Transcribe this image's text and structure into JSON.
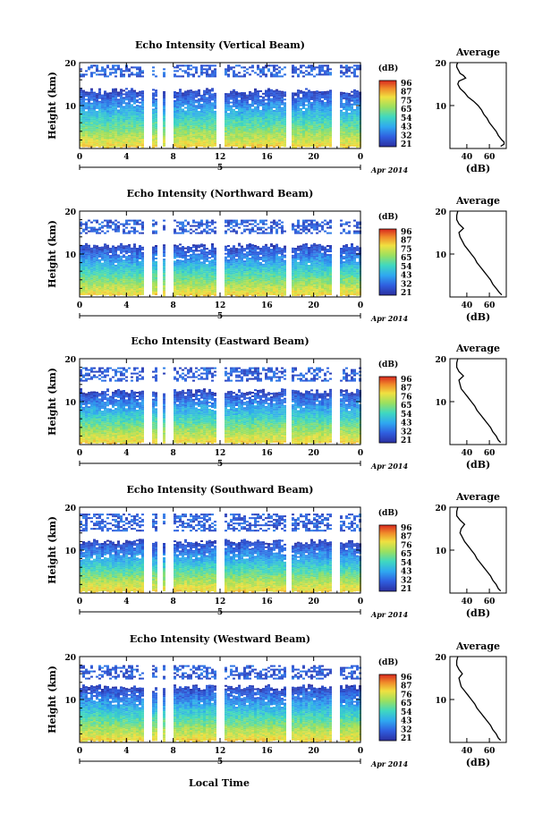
{
  "figure": {
    "common_xlabel": "Local Time",
    "date_suffix": "Apr 2014",
    "day_marker": "5",
    "colorbar_unit": "(dB)"
  },
  "chart_data": [
    {
      "type": "heatmap",
      "beam": "Vertical",
      "title": "Echo Intensity (Vertical Beam)",
      "ylabel": "Height (km)",
      "xlim": [
        0,
        24
      ],
      "ylim": [
        0,
        20
      ],
      "xticks": [
        "0",
        "4",
        "8",
        "12",
        "16",
        "20",
        "0"
      ],
      "yticks": [
        "10",
        "20"
      ],
      "colorbar": {
        "unit": "(dB)",
        "ticks": [
          "96",
          "87",
          "75",
          "65",
          "54",
          "43",
          "32",
          "21"
        ]
      },
      "gaps_hours": [
        [
          5.6,
          6.0
        ],
        [
          6.7,
          7.1
        ],
        [
          7.5,
          8.0
        ],
        [
          11.8,
          12.3
        ],
        [
          17.7,
          18.1
        ],
        [
          21.7,
          22.1
        ]
      ],
      "layers": [
        {
          "top_km": 19.5,
          "bottom_km": 16.6,
          "level_db": 30
        },
        {
          "top_km": 13.5,
          "bottom_km": 0.5,
          "level_db": 75
        }
      ],
      "profile": {
        "title": "Average",
        "xlabel": "(dB)",
        "xticks": [
          "40",
          "60"
        ],
        "yticks": [
          "10",
          "20"
        ],
        "xlim": [
          25,
          75
        ],
        "ylim": [
          0,
          20
        ],
        "height_km": [
          0.5,
          1,
          1.5,
          2,
          3,
          4,
          5,
          6,
          7,
          8,
          9,
          10,
          11,
          12,
          13,
          14,
          15,
          15.7,
          16.4,
          17,
          17.5,
          18,
          18.5,
          19,
          19.5,
          20
        ],
        "avg_db": [
          70,
          73,
          73,
          71,
          68,
          66,
          63,
          60,
          58,
          55,
          53,
          50,
          46,
          41,
          38,
          34,
          32,
          33,
          39,
          37,
          34,
          33,
          32,
          31,
          31,
          32
        ]
      }
    },
    {
      "type": "heatmap",
      "beam": "Northward",
      "title": "Echo Intensity (Northward Beam)",
      "ylabel": "Height (km)",
      "xlim": [
        0,
        24
      ],
      "ylim": [
        0,
        20
      ],
      "xticks": [
        "0",
        "4",
        "8",
        "12",
        "16",
        "20",
        "0"
      ],
      "yticks": [
        "10",
        "20"
      ],
      "colorbar": {
        "unit": "(dB)",
        "ticks": [
          "96",
          "87",
          "75",
          "65",
          "54",
          "43",
          "32",
          "21"
        ]
      },
      "gaps_hours": [
        [
          5.6,
          6.0
        ],
        [
          6.7,
          7.1
        ],
        [
          7.5,
          8.0
        ],
        [
          11.8,
          12.3
        ],
        [
          17.7,
          18.1
        ],
        [
          21.7,
          22.1
        ]
      ],
      "layers": [
        {
          "top_km": 18.0,
          "bottom_km": 15.0,
          "level_db": 30
        },
        {
          "top_km": 12.0,
          "bottom_km": 0.5,
          "level_db": 75
        }
      ],
      "profile": {
        "title": "Average",
        "xlabel": "(dB)",
        "xticks": [
          "40",
          "60"
        ],
        "yticks": [
          "10",
          "20"
        ],
        "xlim": [
          25,
          75
        ],
        "ylim": [
          0,
          20
        ],
        "height_km": [
          0.5,
          1,
          2,
          3,
          4,
          5,
          6,
          7,
          8,
          9,
          10,
          11,
          12,
          13,
          14,
          15,
          16,
          17,
          18,
          19,
          20
        ],
        "avg_db": [
          71,
          69,
          66,
          63,
          61,
          58,
          55,
          52,
          49,
          47,
          44,
          41,
          38,
          36,
          34,
          33,
          37,
          33,
          31,
          31,
          32
        ]
      }
    },
    {
      "type": "heatmap",
      "beam": "Eastward",
      "title": "Echo Intensity (Eastward Beam)",
      "ylabel": "Height (km)",
      "xlim": [
        0,
        24
      ],
      "ylim": [
        0,
        20
      ],
      "xticks": [
        "0",
        "4",
        "8",
        "12",
        "16",
        "20",
        "0"
      ],
      "yticks": [
        "10",
        "20"
      ],
      "colorbar": {
        "unit": "(dB)",
        "ticks": [
          "96",
          "87",
          "76",
          "65",
          "54",
          "43",
          "32",
          "21"
        ]
      },
      "gaps_hours": [
        [
          5.6,
          6.0
        ],
        [
          6.7,
          7.1
        ],
        [
          7.5,
          8.0
        ],
        [
          11.8,
          12.3
        ],
        [
          17.7,
          18.1
        ],
        [
          21.7,
          22.1
        ]
      ],
      "layers": [
        {
          "top_km": 18.0,
          "bottom_km": 15.0,
          "level_db": 30
        },
        {
          "top_km": 12.5,
          "bottom_km": 0.5,
          "level_db": 75
        }
      ],
      "profile": {
        "title": "Average",
        "xlabel": "(dB)",
        "xticks": [
          "40",
          "60"
        ],
        "yticks": [
          "10",
          "20"
        ],
        "xlim": [
          25,
          75
        ],
        "ylim": [
          0,
          20
        ],
        "height_km": [
          0.5,
          1,
          2,
          3,
          4,
          5,
          6,
          7,
          8,
          9,
          10,
          11,
          12,
          13,
          14,
          15,
          16,
          17,
          18,
          19,
          20
        ],
        "avg_db": [
          70,
          68,
          66,
          63,
          61,
          58,
          55,
          52,
          49,
          47,
          44,
          41,
          38,
          35,
          34,
          33,
          37,
          33,
          31,
          31,
          32
        ]
      }
    },
    {
      "type": "heatmap",
      "beam": "Southward",
      "title": "Echo Intensity (Southward Beam)",
      "ylabel": "Height (km)",
      "xlim": [
        0,
        24
      ],
      "ylim": [
        0,
        20
      ],
      "xticks": [
        "0",
        "4",
        "8",
        "12",
        "16",
        "20",
        "0"
      ],
      "yticks": [
        "10",
        "20"
      ],
      "colorbar": {
        "unit": "(dB)",
        "ticks": [
          "96",
          "87",
          "76",
          "65",
          "54",
          "43",
          "32",
          "21"
        ]
      },
      "gaps_hours": [
        [
          5.6,
          6.0
        ],
        [
          6.7,
          7.1
        ],
        [
          7.5,
          8.0
        ],
        [
          11.8,
          12.3
        ],
        [
          17.7,
          18.1
        ],
        [
          21.7,
          22.1
        ]
      ],
      "layers": [
        {
          "top_km": 18.5,
          "bottom_km": 14.5,
          "level_db": 30
        },
        {
          "top_km": 12.0,
          "bottom_km": 0.5,
          "level_db": 75
        }
      ],
      "profile": {
        "title": "Average",
        "xlabel": "(dB)",
        "xticks": [
          "40",
          "60"
        ],
        "yticks": [
          "10",
          "20"
        ],
        "xlim": [
          25,
          75
        ],
        "ylim": [
          0,
          20
        ],
        "height_km": [
          0.5,
          1,
          2,
          3,
          4,
          5,
          6,
          7,
          8,
          9,
          10,
          11,
          12,
          13,
          14,
          15,
          16,
          17,
          18,
          19,
          20
        ],
        "avg_db": [
          70,
          68,
          66,
          63,
          61,
          58,
          55,
          52,
          49,
          47,
          44,
          41,
          38,
          36,
          34,
          35,
          38,
          34,
          31,
          31,
          32
        ]
      }
    },
    {
      "type": "heatmap",
      "beam": "Westward",
      "title": "Echo Intensity (Westward Beam)",
      "ylabel": "Height (km)",
      "xlim": [
        0,
        24
      ],
      "ylim": [
        0,
        20
      ],
      "xticks": [
        "0",
        "4",
        "8",
        "12",
        "16",
        "20",
        "0"
      ],
      "yticks": [
        "10",
        "20"
      ],
      "colorbar": {
        "unit": "(dB)",
        "ticks": [
          "96",
          "87",
          "76",
          "65",
          "54",
          "43",
          "32",
          "21"
        ]
      },
      "gaps_hours": [
        [
          5.6,
          6.0
        ],
        [
          6.7,
          7.1
        ],
        [
          7.5,
          8.0
        ],
        [
          11.8,
          12.3
        ],
        [
          17.7,
          18.1
        ],
        [
          21.7,
          22.1
        ]
      ],
      "layers": [
        {
          "top_km": 18.0,
          "bottom_km": 15.0,
          "level_db": 30
        },
        {
          "top_km": 13.0,
          "bottom_km": 0.5,
          "level_db": 75
        }
      ],
      "profile": {
        "title": "Average",
        "xlabel": "(dB)",
        "xticks": [
          "40",
          "60"
        ],
        "yticks": [
          "10",
          "20"
        ],
        "xlim": [
          25,
          75
        ],
        "ylim": [
          0,
          20
        ],
        "height_km": [
          0.5,
          1,
          2,
          3,
          4,
          5,
          6,
          7,
          8,
          9,
          10,
          11,
          12,
          13,
          14,
          15,
          16,
          17,
          18,
          19,
          20
        ],
        "avg_db": [
          70,
          68,
          66,
          63,
          61,
          58,
          55,
          52,
          49,
          47,
          44,
          41,
          38,
          35,
          34,
          33,
          36,
          33,
          31,
          31,
          32
        ]
      }
    }
  ]
}
